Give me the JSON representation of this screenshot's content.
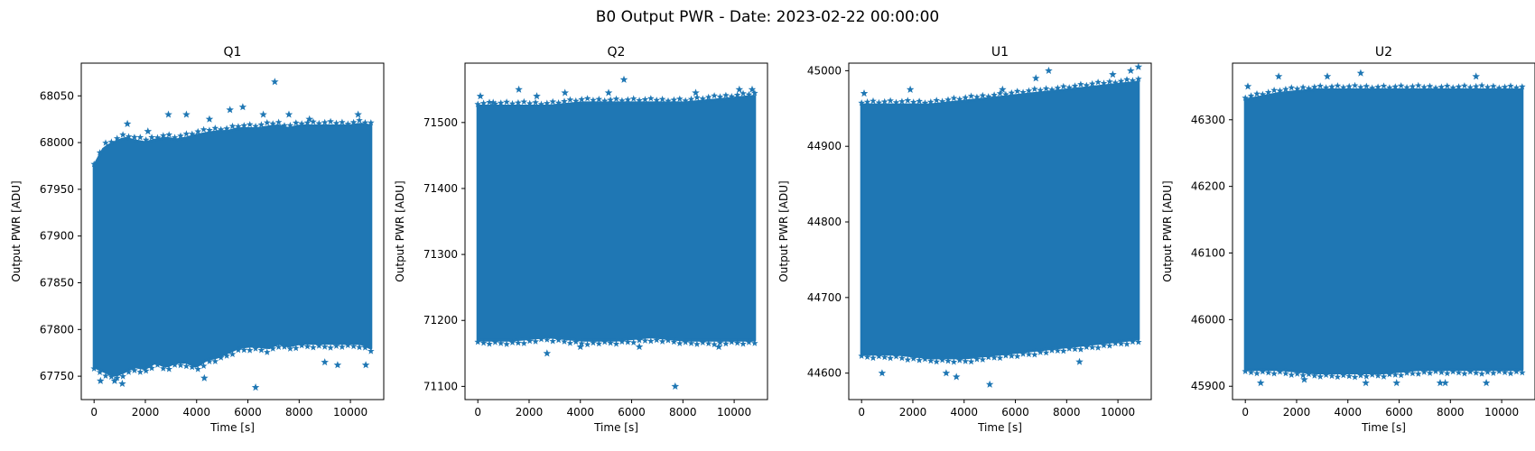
{
  "figure": {
    "suptitle": "B0 Output PWR - Date: 2023-02-22 00:00:00"
  },
  "chart_data": [
    {
      "type": "scatter",
      "title": "Q1",
      "xlabel": "Time [s]",
      "ylabel": "Output PWR [ADU]",
      "marker": "star",
      "color": "#1f77b4",
      "grid": false,
      "xlim": [
        -500,
        11300
      ],
      "ylim": [
        67725,
        68085
      ],
      "xticks": [
        0,
        2000,
        4000,
        6000,
        8000,
        10000
      ],
      "yticks": [
        67750,
        67800,
        67850,
        67900,
        67950,
        68000,
        68050
      ],
      "x_range": [
        0,
        10800
      ],
      "band": {
        "x": [
          0,
          400,
          800,
          1200,
          1600,
          2000,
          2400,
          2800,
          3200,
          3600,
          4000,
          4400,
          4800,
          5200,
          5600,
          6000,
          6400,
          6800,
          7200,
          7600,
          8000,
          8400,
          8800,
          9200,
          9600,
          10000,
          10400,
          10800
        ],
        "upper": [
          67975,
          67995,
          68000,
          68005,
          68002,
          68000,
          68003,
          68005,
          68003,
          68005,
          68008,
          68010,
          68012,
          68012,
          68015,
          68015,
          68015,
          68017,
          68018,
          68015,
          68018,
          68018,
          68018,
          68018,
          68018,
          68018,
          68020,
          68018
        ],
        "lower": [
          67760,
          67755,
          67750,
          67755,
          67760,
          67758,
          67765,
          67760,
          67765,
          67765,
          67760,
          67768,
          67770,
          67775,
          67780,
          67782,
          67782,
          67780,
          67785,
          67782,
          67785,
          67785,
          67785,
          67785,
          67785,
          67785,
          67785,
          67780
        ]
      },
      "outliers": [
        [
          250,
          67745
        ],
        [
          800,
          67745
        ],
        [
          1100,
          67742
        ],
        [
          1300,
          68020
        ],
        [
          2100,
          68012
        ],
        [
          2900,
          68030
        ],
        [
          3600,
          68030
        ],
        [
          4300,
          67748
        ],
        [
          4500,
          68025
        ],
        [
          5300,
          68035
        ],
        [
          5800,
          68038
        ],
        [
          6300,
          67738
        ],
        [
          6600,
          68030
        ],
        [
          7050,
          68065
        ],
        [
          7600,
          68030
        ],
        [
          8400,
          68025
        ],
        [
          9000,
          67765
        ],
        [
          9500,
          67762
        ],
        [
          10300,
          68030
        ],
        [
          10600,
          67762
        ]
      ]
    },
    {
      "type": "scatter",
      "title": "Q2",
      "xlabel": "Time [s]",
      "ylabel": "Output PWR [ADU]",
      "marker": "star",
      "color": "#1f77b4",
      "grid": false,
      "xlim": [
        -500,
        11300
      ],
      "ylim": [
        71080,
        71590
      ],
      "xticks": [
        0,
        2000,
        4000,
        6000,
        8000,
        10000
      ],
      "yticks": [
        71100,
        71200,
        71300,
        71400,
        71500
      ],
      "x_range": [
        0,
        10800
      ],
      "band": {
        "x": [
          0,
          1350,
          2700,
          4050,
          5400,
          6750,
          8100,
          9450,
          10800
        ],
        "upper": [
          71525,
          71525,
          71525,
          71530,
          71530,
          71530,
          71530,
          71535,
          71540
        ],
        "lower": [
          71170,
          71170,
          71175,
          71170,
          71170,
          71175,
          71170,
          71170,
          71170
        ]
      },
      "outliers": [
        [
          100,
          71540
        ],
        [
          600,
          71530
        ],
        [
          1600,
          71550
        ],
        [
          2300,
          71540
        ],
        [
          2700,
          71150
        ],
        [
          3400,
          71545
        ],
        [
          4000,
          71160
        ],
        [
          5100,
          71545
        ],
        [
          5700,
          71565
        ],
        [
          6300,
          71160
        ],
        [
          7700,
          71100
        ],
        [
          8500,
          71545
        ],
        [
          9400,
          71160
        ],
        [
          10200,
          71550
        ],
        [
          10700,
          71550
        ]
      ]
    },
    {
      "type": "scatter",
      "title": "U1",
      "xlabel": "Time [s]",
      "ylabel": "Output PWR [ADU]",
      "marker": "star",
      "color": "#1f77b4",
      "grid": false,
      "xlim": [
        -500,
        11300
      ],
      "ylim": [
        44565,
        45010
      ],
      "xticks": [
        0,
        2000,
        4000,
        6000,
        8000,
        10000
      ],
      "yticks": [
        44600,
        44700,
        44800,
        44900,
        45000
      ],
      "x_range": [
        0,
        10800
      ],
      "band": {
        "x": [
          0,
          1350,
          2700,
          4050,
          5400,
          6750,
          8100,
          9450,
          10800
        ],
        "upper": [
          44955,
          44955,
          44955,
          44960,
          44965,
          44970,
          44975,
          44980,
          44985
        ],
        "lower": [
          44625,
          44625,
          44620,
          44620,
          44625,
          44630,
          44635,
          44640,
          44645
        ]
      },
      "outliers": [
        [
          100,
          44970
        ],
        [
          800,
          44600
        ],
        [
          1900,
          44975
        ],
        [
          3300,
          44600
        ],
        [
          3700,
          44595
        ],
        [
          5000,
          44585
        ],
        [
          5500,
          44975
        ],
        [
          6800,
          44990
        ],
        [
          7300,
          45000
        ],
        [
          8500,
          44615
        ],
        [
          9800,
          44995
        ],
        [
          10500,
          45000
        ],
        [
          10800,
          45005
        ]
      ]
    },
    {
      "type": "scatter",
      "title": "U2",
      "xlabel": "Time [s]",
      "ylabel": "Output PWR [ADU]",
      "marker": "star",
      "color": "#1f77b4",
      "grid": false,
      "xlim": [
        -500,
        11300
      ],
      "ylim": [
        45880,
        46385
      ],
      "xticks": [
        0,
        2000,
        4000,
        6000,
        8000,
        10000
      ],
      "yticks": [
        45900,
        46000,
        46100,
        46200,
        46300
      ],
      "x_range": [
        0,
        10800
      ],
      "band": {
        "x": [
          0,
          1350,
          2700,
          4050,
          5400,
          6750,
          8100,
          9450,
          10800
        ],
        "upper": [
          46330,
          46340,
          46345,
          46345,
          46345,
          46345,
          46345,
          46345,
          46345
        ],
        "lower": [
          45925,
          45925,
          45920,
          45920,
          45920,
          45925,
          45925,
          45925,
          45925
        ]
      },
      "outliers": [
        [
          100,
          46350
        ],
        [
          600,
          45905
        ],
        [
          1300,
          46365
        ],
        [
          2300,
          45910
        ],
        [
          3200,
          46365
        ],
        [
          4500,
          46370
        ],
        [
          4700,
          45905
        ],
        [
          5900,
          45905
        ],
        [
          7600,
          45905
        ],
        [
          7800,
          45905
        ],
        [
          9000,
          46365
        ],
        [
          9400,
          45905
        ]
      ]
    }
  ]
}
